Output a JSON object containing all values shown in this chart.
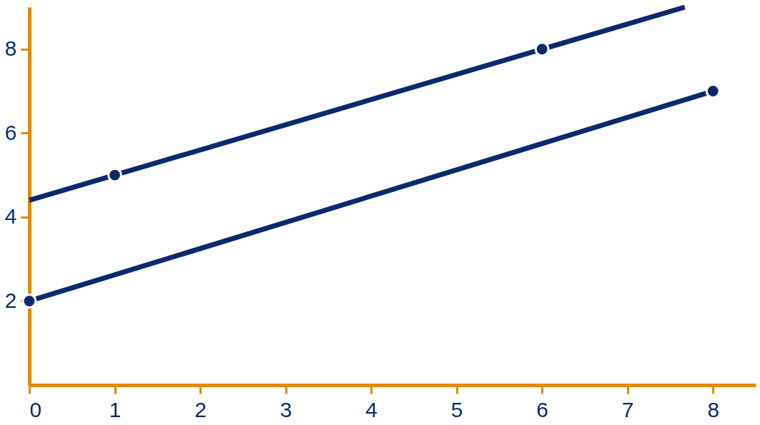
{
  "chart_data": {
    "type": "line",
    "xlim": [
      0,
      8.5
    ],
    "ylim": [
      0,
      9
    ],
    "xticks": [
      0,
      1,
      2,
      3,
      4,
      5,
      6,
      7,
      8
    ],
    "yticks": [
      2,
      4,
      6,
      8
    ],
    "grid": false,
    "line_style": "solid",
    "series": [
      {
        "color": "#0b2a6e",
        "marker": "none",
        "x": [
          0,
          7.67
        ],
        "values": [
          4.4,
          9.0
        ]
      },
      {
        "color": "#0b2a6e",
        "marker": "none",
        "x": [
          0,
          8
        ],
        "values": [
          2,
          7
        ]
      },
      {
        "type": "scatter",
        "color": "#0b2a6e",
        "marker": "circle",
        "x": [
          1,
          6,
          0,
          8
        ],
        "values": [
          5,
          8,
          2,
          7
        ]
      }
    ]
  }
}
